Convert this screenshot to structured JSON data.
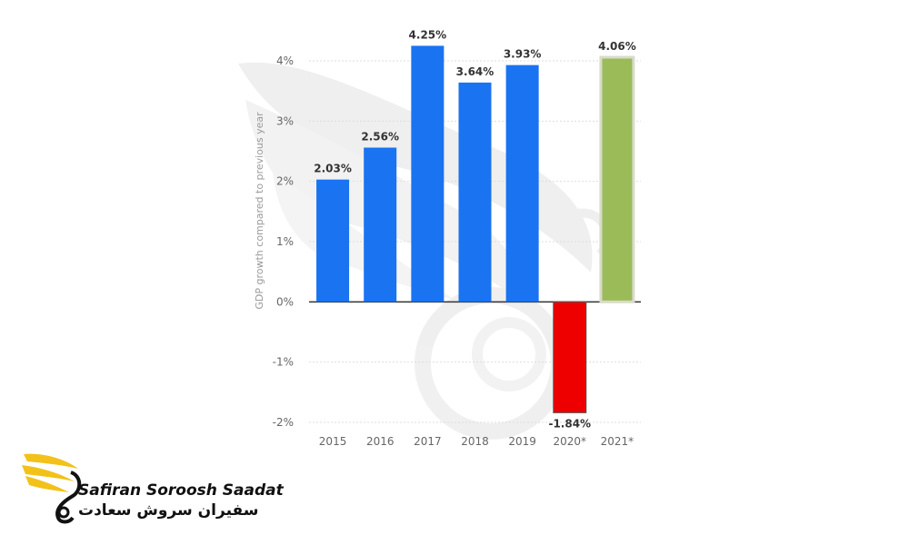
{
  "chart_data": {
    "type": "bar",
    "categories": [
      "2015",
      "2016",
      "2017",
      "2018",
      "2019",
      "2020*",
      "2021*"
    ],
    "values": [
      2.03,
      2.56,
      4.25,
      3.64,
      3.93,
      -1.84,
      4.06
    ],
    "data_labels": [
      "2.03%",
      "2.56%",
      "4.25%",
      "3.64%",
      "3.93%",
      "-1.84%",
      "4.06%"
    ],
    "bar_colors": [
      "#1a73f0",
      "#1a73f0",
      "#1a73f0",
      "#1a73f0",
      "#1a73f0",
      "#ee0000",
      "#9bbb59"
    ],
    "ylabel": "GDP growth compared to previous year",
    "ylim": [
      -2,
      4
    ],
    "y_ticks": [
      4,
      3,
      2,
      1,
      0,
      -1,
      -2
    ],
    "y_tick_labels": [
      "4%",
      "3%",
      "2%",
      "1%",
      "0%",
      "-1%",
      "-2%"
    ],
    "grid": true
  },
  "logo": {
    "latin": "Safiran Soroosh Saadat",
    "persian": "سفیران سروش سعادت",
    "colors": {
      "wing": "#f2c21a",
      "text": "#111111"
    },
    "icon": "winged-swan-logo"
  },
  "watermark": {
    "icon": "winged-swan-watermark",
    "color": "#e8e8e8"
  }
}
